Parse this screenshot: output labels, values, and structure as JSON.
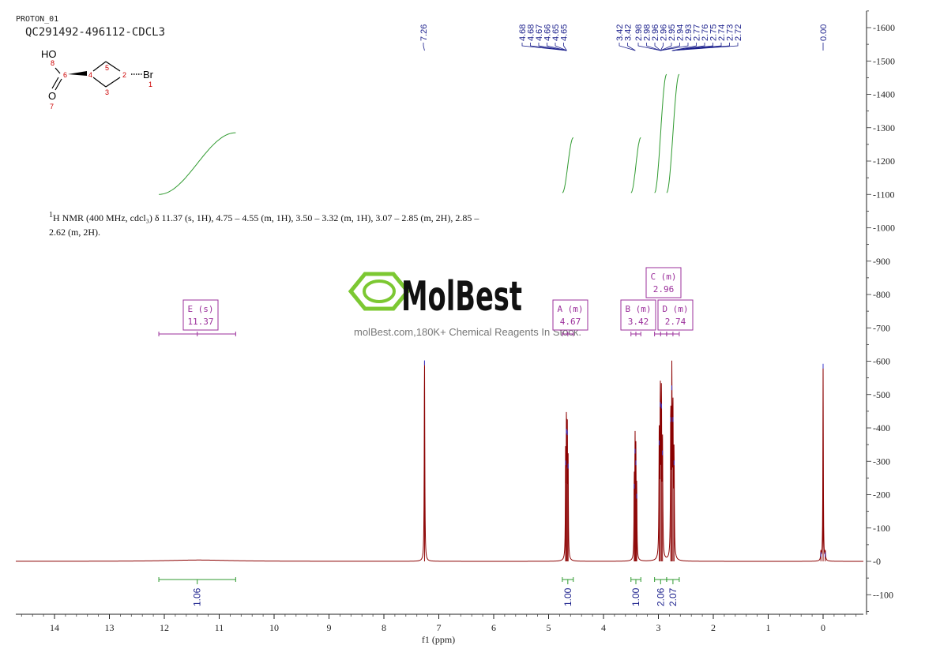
{
  "header": {
    "experiment": "PROTON_01",
    "sample": "QC291492-496112-CDCL3"
  },
  "summary": {
    "sup": "1",
    "text": "H NMR (400 MHz, cdcl₃) δ 11.37 (s, 1H), 4.75 – 4.55 (m, 1H), 3.50 – 3.32 (m, 1H), 3.07 – 2.85 (m, 2H), 2.85 – 2.62 (m, 2H)."
  },
  "structure": {
    "atoms": [
      "HO",
      "8",
      "6",
      "4",
      "5",
      "3",
      "2",
      "Br",
      "1",
      "O",
      "7"
    ]
  },
  "watermark": {
    "brand": "MolBest",
    "url": "molBest.com,180K+ Chemical Reagents In Stock."
  },
  "colors": {
    "spectrum": "#8b0000",
    "integral": "#2f9a2f",
    "peak_label": "#1a1f8c",
    "multiplet_box": "#9b2f9b",
    "watermark": "#7cc832"
  },
  "chart_data": {
    "type": "line",
    "title": "",
    "xlabel": "f1 (ppm)",
    "ylabel": "",
    "x_reversed": true,
    "xlim": [
      14.6,
      -0.75
    ],
    "ylim": [
      -160,
      1650
    ],
    "x_ticks": [
      "14",
      "13",
      "12",
      "11",
      "10",
      "9",
      "8",
      "7",
      "6",
      "5",
      "4",
      "3",
      "2",
      "1",
      "0"
    ],
    "y_ticks": [
      "1600",
      "1500",
      "1400",
      "1300",
      "1200",
      "1100",
      "1000",
      "900",
      "800",
      "700",
      "600",
      "500",
      "400",
      "300",
      "200",
      "100",
      "0",
      "-100"
    ],
    "peak_labels": [
      "4.68",
      "4.68",
      "4.67",
      "4.66",
      "4.65",
      "4.65",
      "3.42",
      "3.42",
      "2.98",
      "2.98",
      "2.96",
      "2.96",
      "2.95",
      "2.94",
      "2.93",
      "2.77",
      "2.76",
      "2.75",
      "2.74",
      "2.73",
      "2.72",
      "0.00",
      "7.26"
    ],
    "peaks": [
      {
        "ppm": 7.26,
        "height": 600,
        "width": 0.006
      },
      {
        "ppm": 4.69,
        "height": 300,
        "width": 0.005
      },
      {
        "ppm": 4.675,
        "height": 395,
        "width": 0.005
      },
      {
        "ppm": 4.66,
        "height": 390,
        "width": 0.005
      },
      {
        "ppm": 4.645,
        "height": 290,
        "width": 0.005
      },
      {
        "ppm": 3.44,
        "height": 230,
        "width": 0.005
      },
      {
        "ppm": 3.425,
        "height": 335,
        "width": 0.005
      },
      {
        "ppm": 3.41,
        "height": 300,
        "width": 0.005
      },
      {
        "ppm": 3.395,
        "height": 200,
        "width": 0.005
      },
      {
        "ppm": 2.985,
        "height": 360,
        "width": 0.006
      },
      {
        "ppm": 2.965,
        "height": 475,
        "width": 0.006
      },
      {
        "ppm": 2.945,
        "height": 470,
        "width": 0.006
      },
      {
        "ppm": 2.925,
        "height": 330,
        "width": 0.006
      },
      {
        "ppm": 2.775,
        "height": 430,
        "width": 0.006
      },
      {
        "ppm": 2.755,
        "height": 525,
        "width": 0.006
      },
      {
        "ppm": 2.735,
        "height": 430,
        "width": 0.006
      },
      {
        "ppm": 2.715,
        "height": 300,
        "width": 0.006
      },
      {
        "ppm": 0.0,
        "height": 590,
        "width": 0.005
      },
      {
        "ppm": 0.04,
        "height": 25,
        "width": 0.006
      },
      {
        "ppm": -0.04,
        "height": 25,
        "width": 0.006
      }
    ],
    "integrals": [
      {
        "from": 12.1,
        "to": 10.7,
        "value": "1.06",
        "y_start": 1100,
        "y_end": 1285
      },
      {
        "from": 4.75,
        "to": 4.55,
        "value": "1.00",
        "y_start": 1105,
        "y_end": 1270
      },
      {
        "from": 3.5,
        "to": 3.32,
        "value": "1.00",
        "y_start": 1105,
        "y_end": 1270
      },
      {
        "from": 3.07,
        "to": 2.85,
        "value": "2.06",
        "y_start": 1105,
        "y_end": 1460
      },
      {
        "from": 2.85,
        "to": 2.62,
        "value": "2.07",
        "y_start": 1105,
        "y_end": 1460
      }
    ],
    "multiplets": [
      {
        "label": "E (s)",
        "shift": "11.37",
        "from": 12.1,
        "to": 10.7
      },
      {
        "label": "A (m)",
        "shift": "4.67",
        "from": 4.75,
        "to": 4.55
      },
      {
        "label": "B (m)",
        "shift": "3.42",
        "from": 3.5,
        "to": 3.32
      },
      {
        "label": "C (m)",
        "shift": "2.96",
        "from": 3.07,
        "to": 2.85
      },
      {
        "label": "D (m)",
        "shift": "2.74",
        "from": 2.85,
        "to": 2.62
      }
    ],
    "grid": false
  }
}
